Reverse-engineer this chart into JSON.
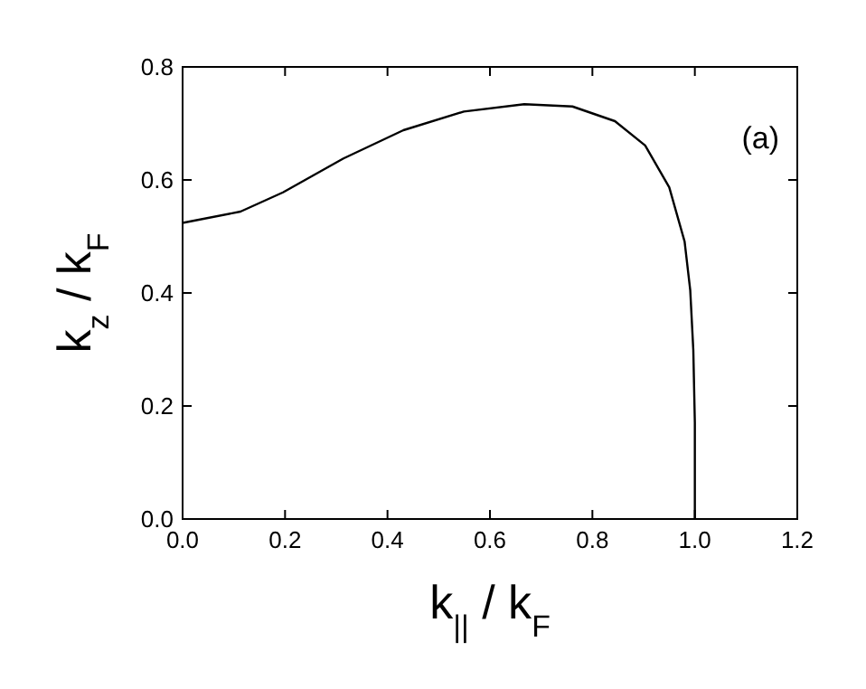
{
  "chart_data": {
    "type": "line",
    "xlabel": "k$_{||}$ / k$_{F}$",
    "ylabel": "k$_{z}$ / k$_{F}$",
    "annotations": [
      "(a)"
    ],
    "x": [
      0,
      0.113,
      0.196,
      0.314,
      0.431,
      0.549,
      0.667,
      0.761,
      0.844,
      0.903,
      0.95,
      0.98,
      0.991,
      0.997,
      1.0,
      1.0
    ],
    "series": [
      {
        "color": "#000000",
        "values": [
          0.524,
          0.544,
          0.578,
          0.638,
          0.688,
          0.721,
          0.734,
          0.73,
          0.704,
          0.661,
          0.587,
          0.491,
          0.405,
          0.299,
          0.171,
          0
        ]
      }
    ],
    "xlim": [
      0,
      1.2
    ],
    "xticks": [
      {
        "value": 0,
        "label": "0.0"
      },
      0.2,
      0.4,
      0.6,
      0.8,
      {
        "value": 1,
        "label": "1.0"
      },
      1.2
    ],
    "ylim": [
      0,
      0.8
    ],
    "yticks": [
      {
        "value": 0,
        "label": "0.0"
      },
      0.2,
      0.4,
      0.6,
      0.8
    ],
    "grid": false,
    "marker": "none",
    "line_style": "solid"
  }
}
